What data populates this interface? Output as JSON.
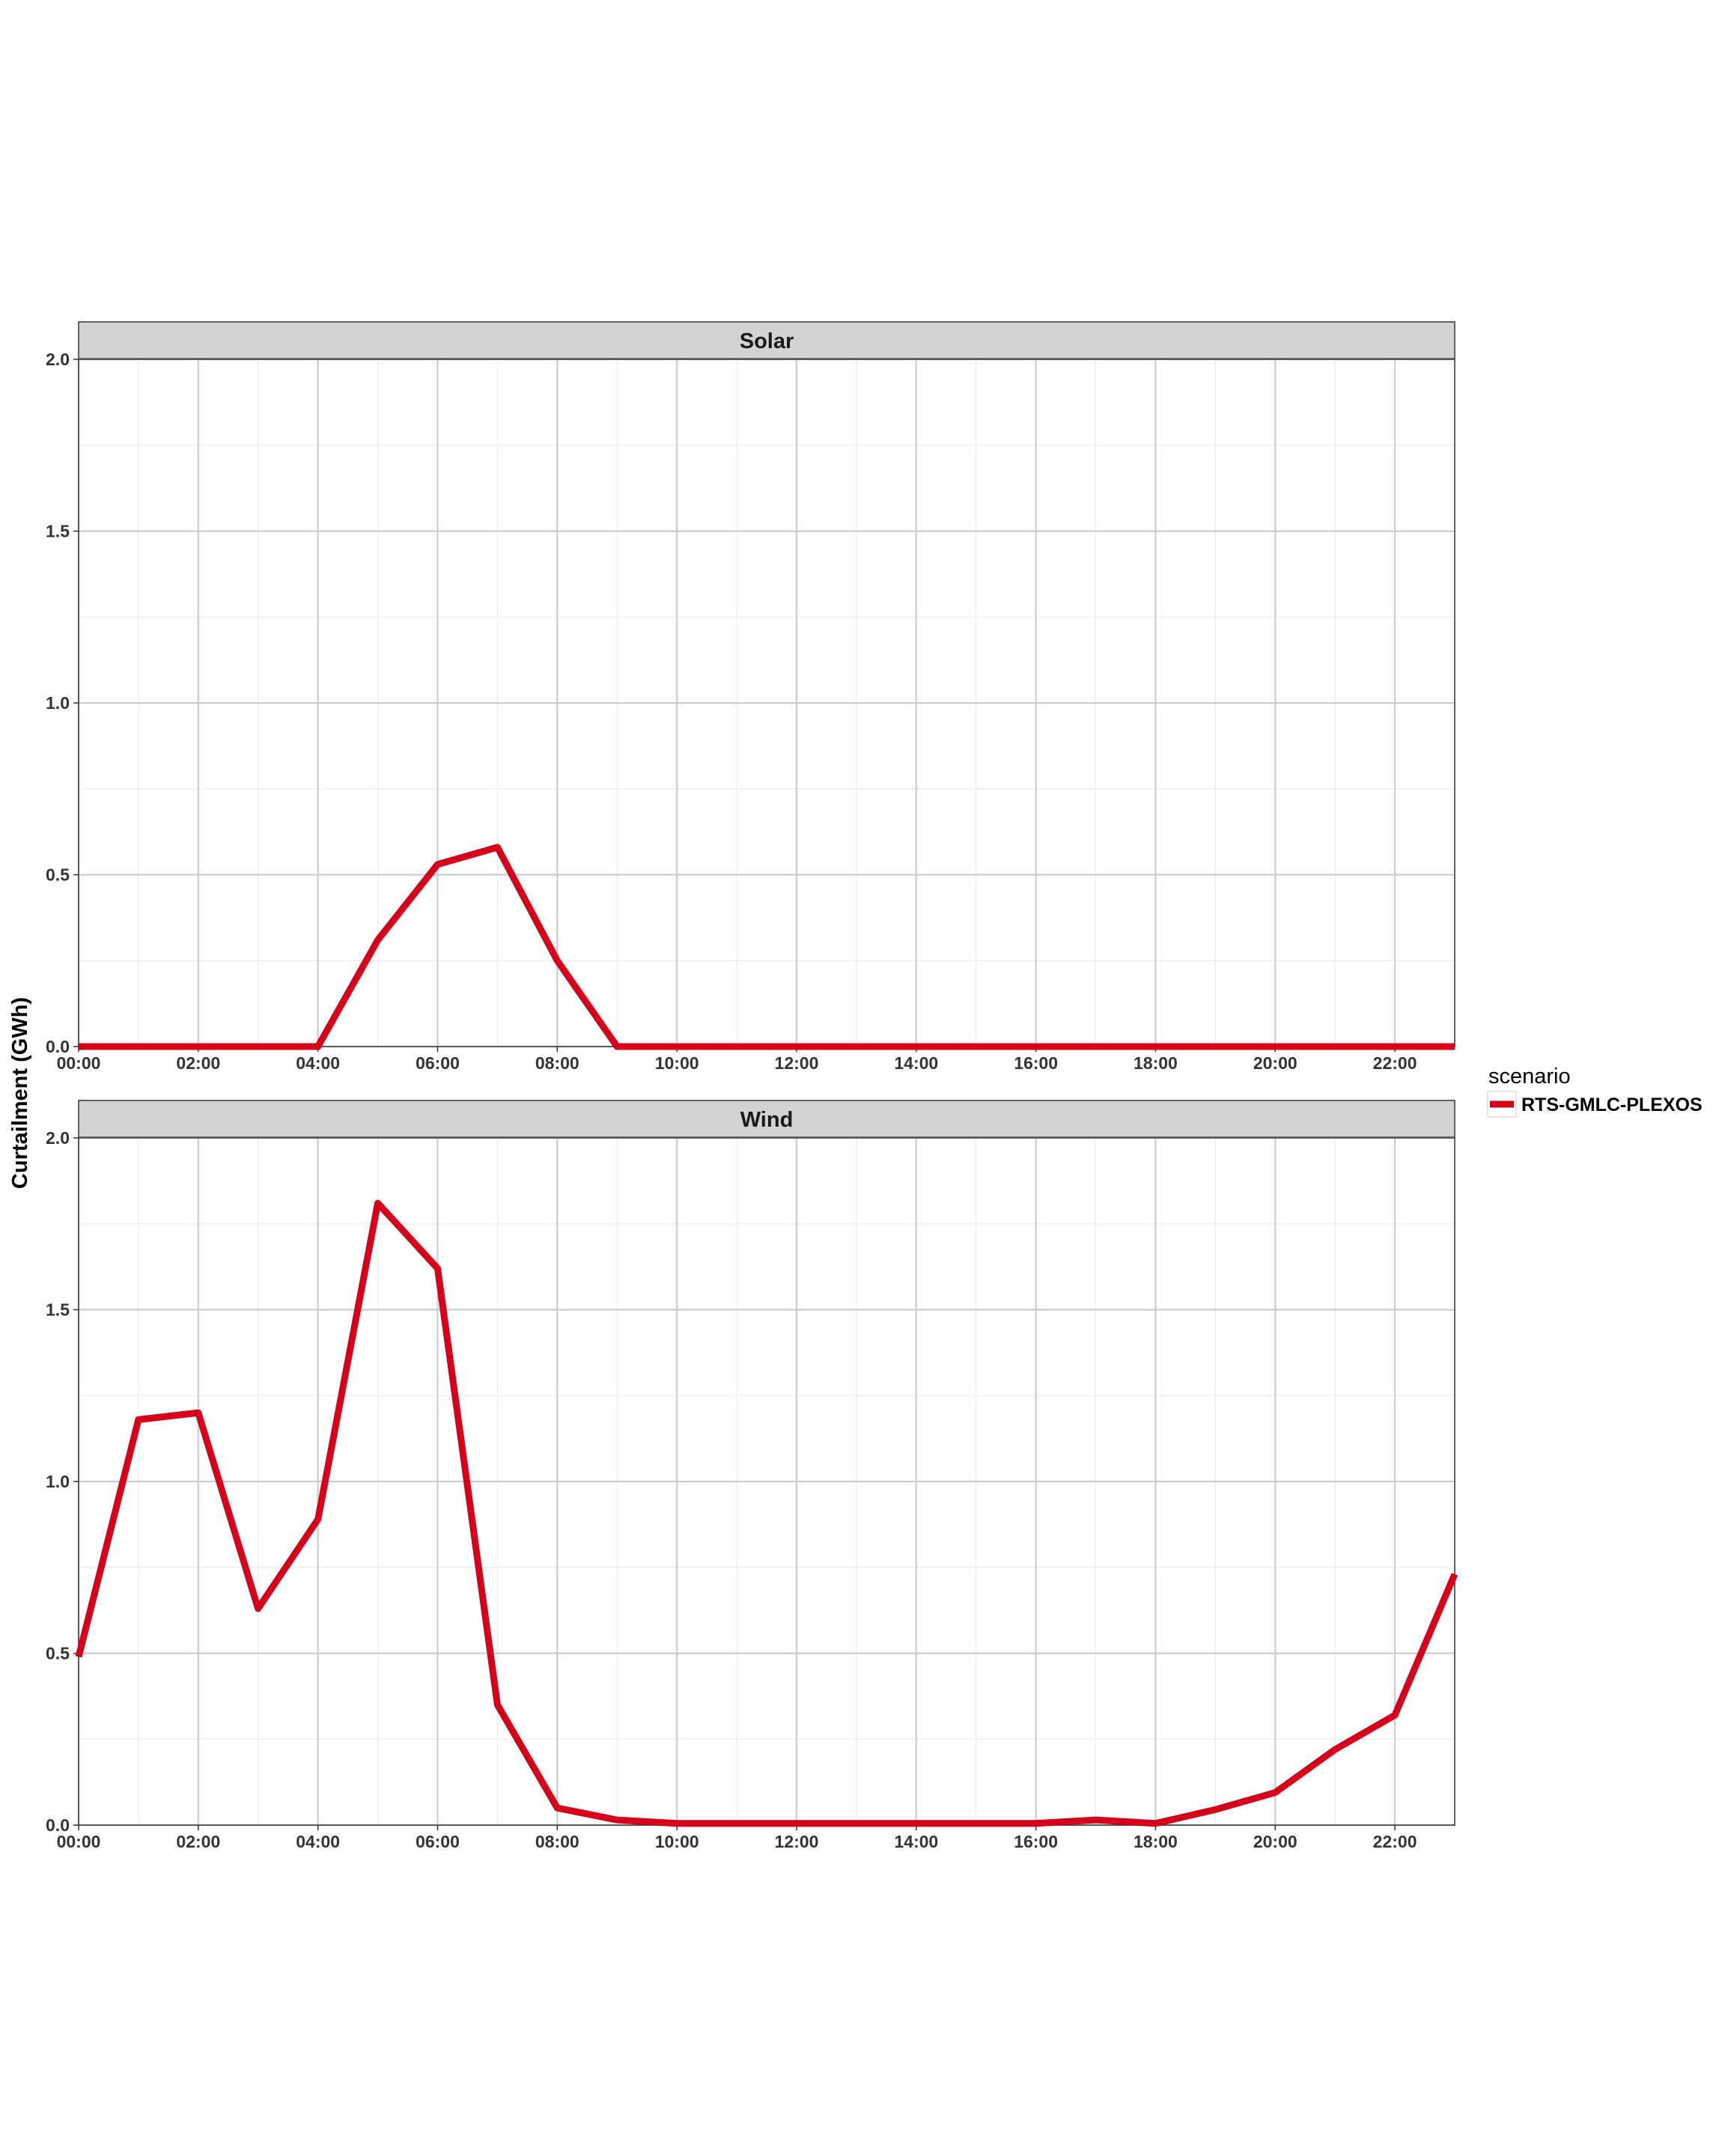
{
  "chart_data": {
    "type": "line",
    "ylabel": "Curtailment (GWh)",
    "xlabel": "",
    "x": [
      "00:00",
      "01:00",
      "02:00",
      "03:00",
      "04:00",
      "05:00",
      "06:00",
      "07:00",
      "08:00",
      "09:00",
      "10:00",
      "11:00",
      "12:00",
      "13:00",
      "14:00",
      "15:00",
      "16:00",
      "17:00",
      "18:00",
      "19:00",
      "20:00",
      "21:00",
      "22:00",
      "23:00"
    ],
    "xticks": [
      "00:00",
      "02:00",
      "04:00",
      "06:00",
      "08:00",
      "10:00",
      "12:00",
      "14:00",
      "16:00",
      "18:00",
      "20:00",
      "22:00"
    ],
    "ylim": [
      0,
      2.0
    ],
    "yticks": [
      "0.0",
      "0.5",
      "1.0",
      "1.5",
      "2.0"
    ],
    "grid": true,
    "legend": {
      "title": "scenario",
      "placement": "right",
      "entries": [
        {
          "name": "RTS-GMLC-PLEXOS",
          "color": "#d7001a"
        }
      ]
    },
    "panels": [
      {
        "name": "Solar",
        "series": [
          {
            "name": "RTS-GMLC-PLEXOS",
            "color": "#d7001a",
            "values": [
              0,
              0,
              0,
              0,
              0,
              0.31,
              0.53,
              0.58,
              0.25,
              0,
              0,
              0,
              0,
              0,
              0,
              0,
              0,
              0,
              0,
              0,
              0,
              0,
              0,
              0
            ]
          }
        ]
      },
      {
        "name": "Wind",
        "series": [
          {
            "name": "RTS-GMLC-PLEXOS",
            "color": "#d7001a",
            "values": [
              0.49,
              1.18,
              1.2,
              0.63,
              0.89,
              1.81,
              1.62,
              0.35,
              0.05,
              0.015,
              0.005,
              0.005,
              0.005,
              0.005,
              0.005,
              0.005,
              0.005,
              0.015,
              0.005,
              0.045,
              0.095,
              0.22,
              0.32,
              0.73
            ]
          }
        ]
      }
    ]
  }
}
